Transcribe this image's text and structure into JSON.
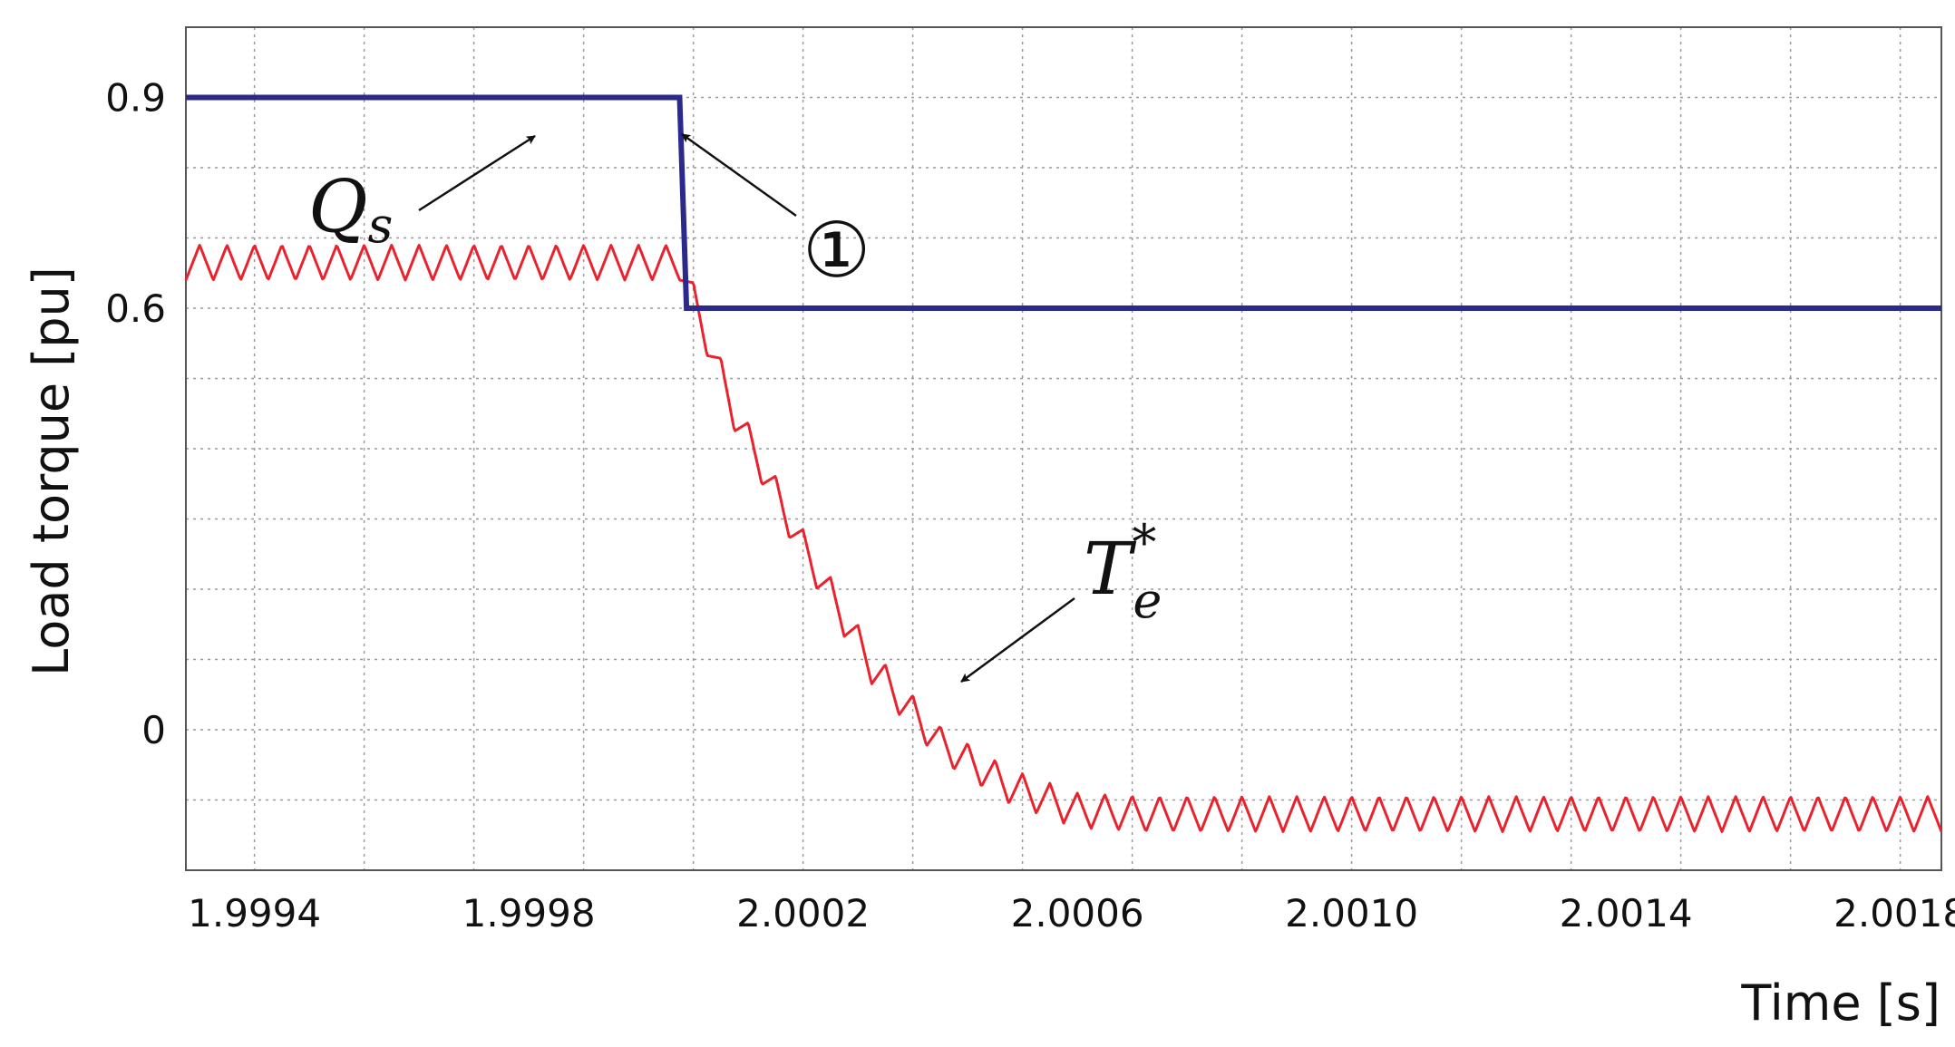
{
  "chart_data": {
    "type": "line",
    "xlabel": "Time [s]",
    "ylabel": "Load torque [pu]",
    "x_ticks": [
      "1.9994",
      "1.9998",
      "2.0002",
      "2.0006",
      "2.0010",
      "2.0014",
      "2.0018"
    ],
    "x_tick_values": [
      1.9994,
      1.9998,
      2.0002,
      2.0006,
      2.001,
      2.0014,
      2.0018
    ],
    "y_ticks": [
      "0.9",
      "0.6",
      "0"
    ],
    "y_tick_values": [
      0.9,
      0.6,
      0.0
    ],
    "xlim": [
      1.9993,
      2.00186
    ],
    "ylim": [
      -0.2,
      1.0
    ],
    "grid": true,
    "series": [
      {
        "name": "Q_s",
        "color": "#2b2a8c",
        "x": [
          1.9993,
          2.00002,
          2.00003,
          2.00186
        ],
        "y": [
          0.9,
          0.9,
          0.6,
          0.6
        ]
      },
      {
        "name": "T_e*",
        "color": "#e8232e",
        "x_start": 1.9993,
        "x_end": 2.00186,
        "ripple_period": 4e-05,
        "ripple_amplitude": 0.025,
        "x": [
          1.9993,
          2.00002,
          2.0001,
          2.0002,
          2.0003,
          2.0004,
          2.0005,
          2.0006,
          2.0007,
          2.00186
        ],
        "y": [
          0.665,
          0.665,
          0.45,
          0.26,
          0.09,
          -0.02,
          -0.08,
          -0.115,
          -0.12,
          -0.12
        ]
      }
    ],
    "annotations": [
      {
        "id": "qs",
        "text": "Q",
        "sub": "s"
      },
      {
        "id": "te",
        "text": "T",
        "sub": "e",
        "sup": "*"
      },
      {
        "id": "marker",
        "text": "①"
      }
    ]
  }
}
